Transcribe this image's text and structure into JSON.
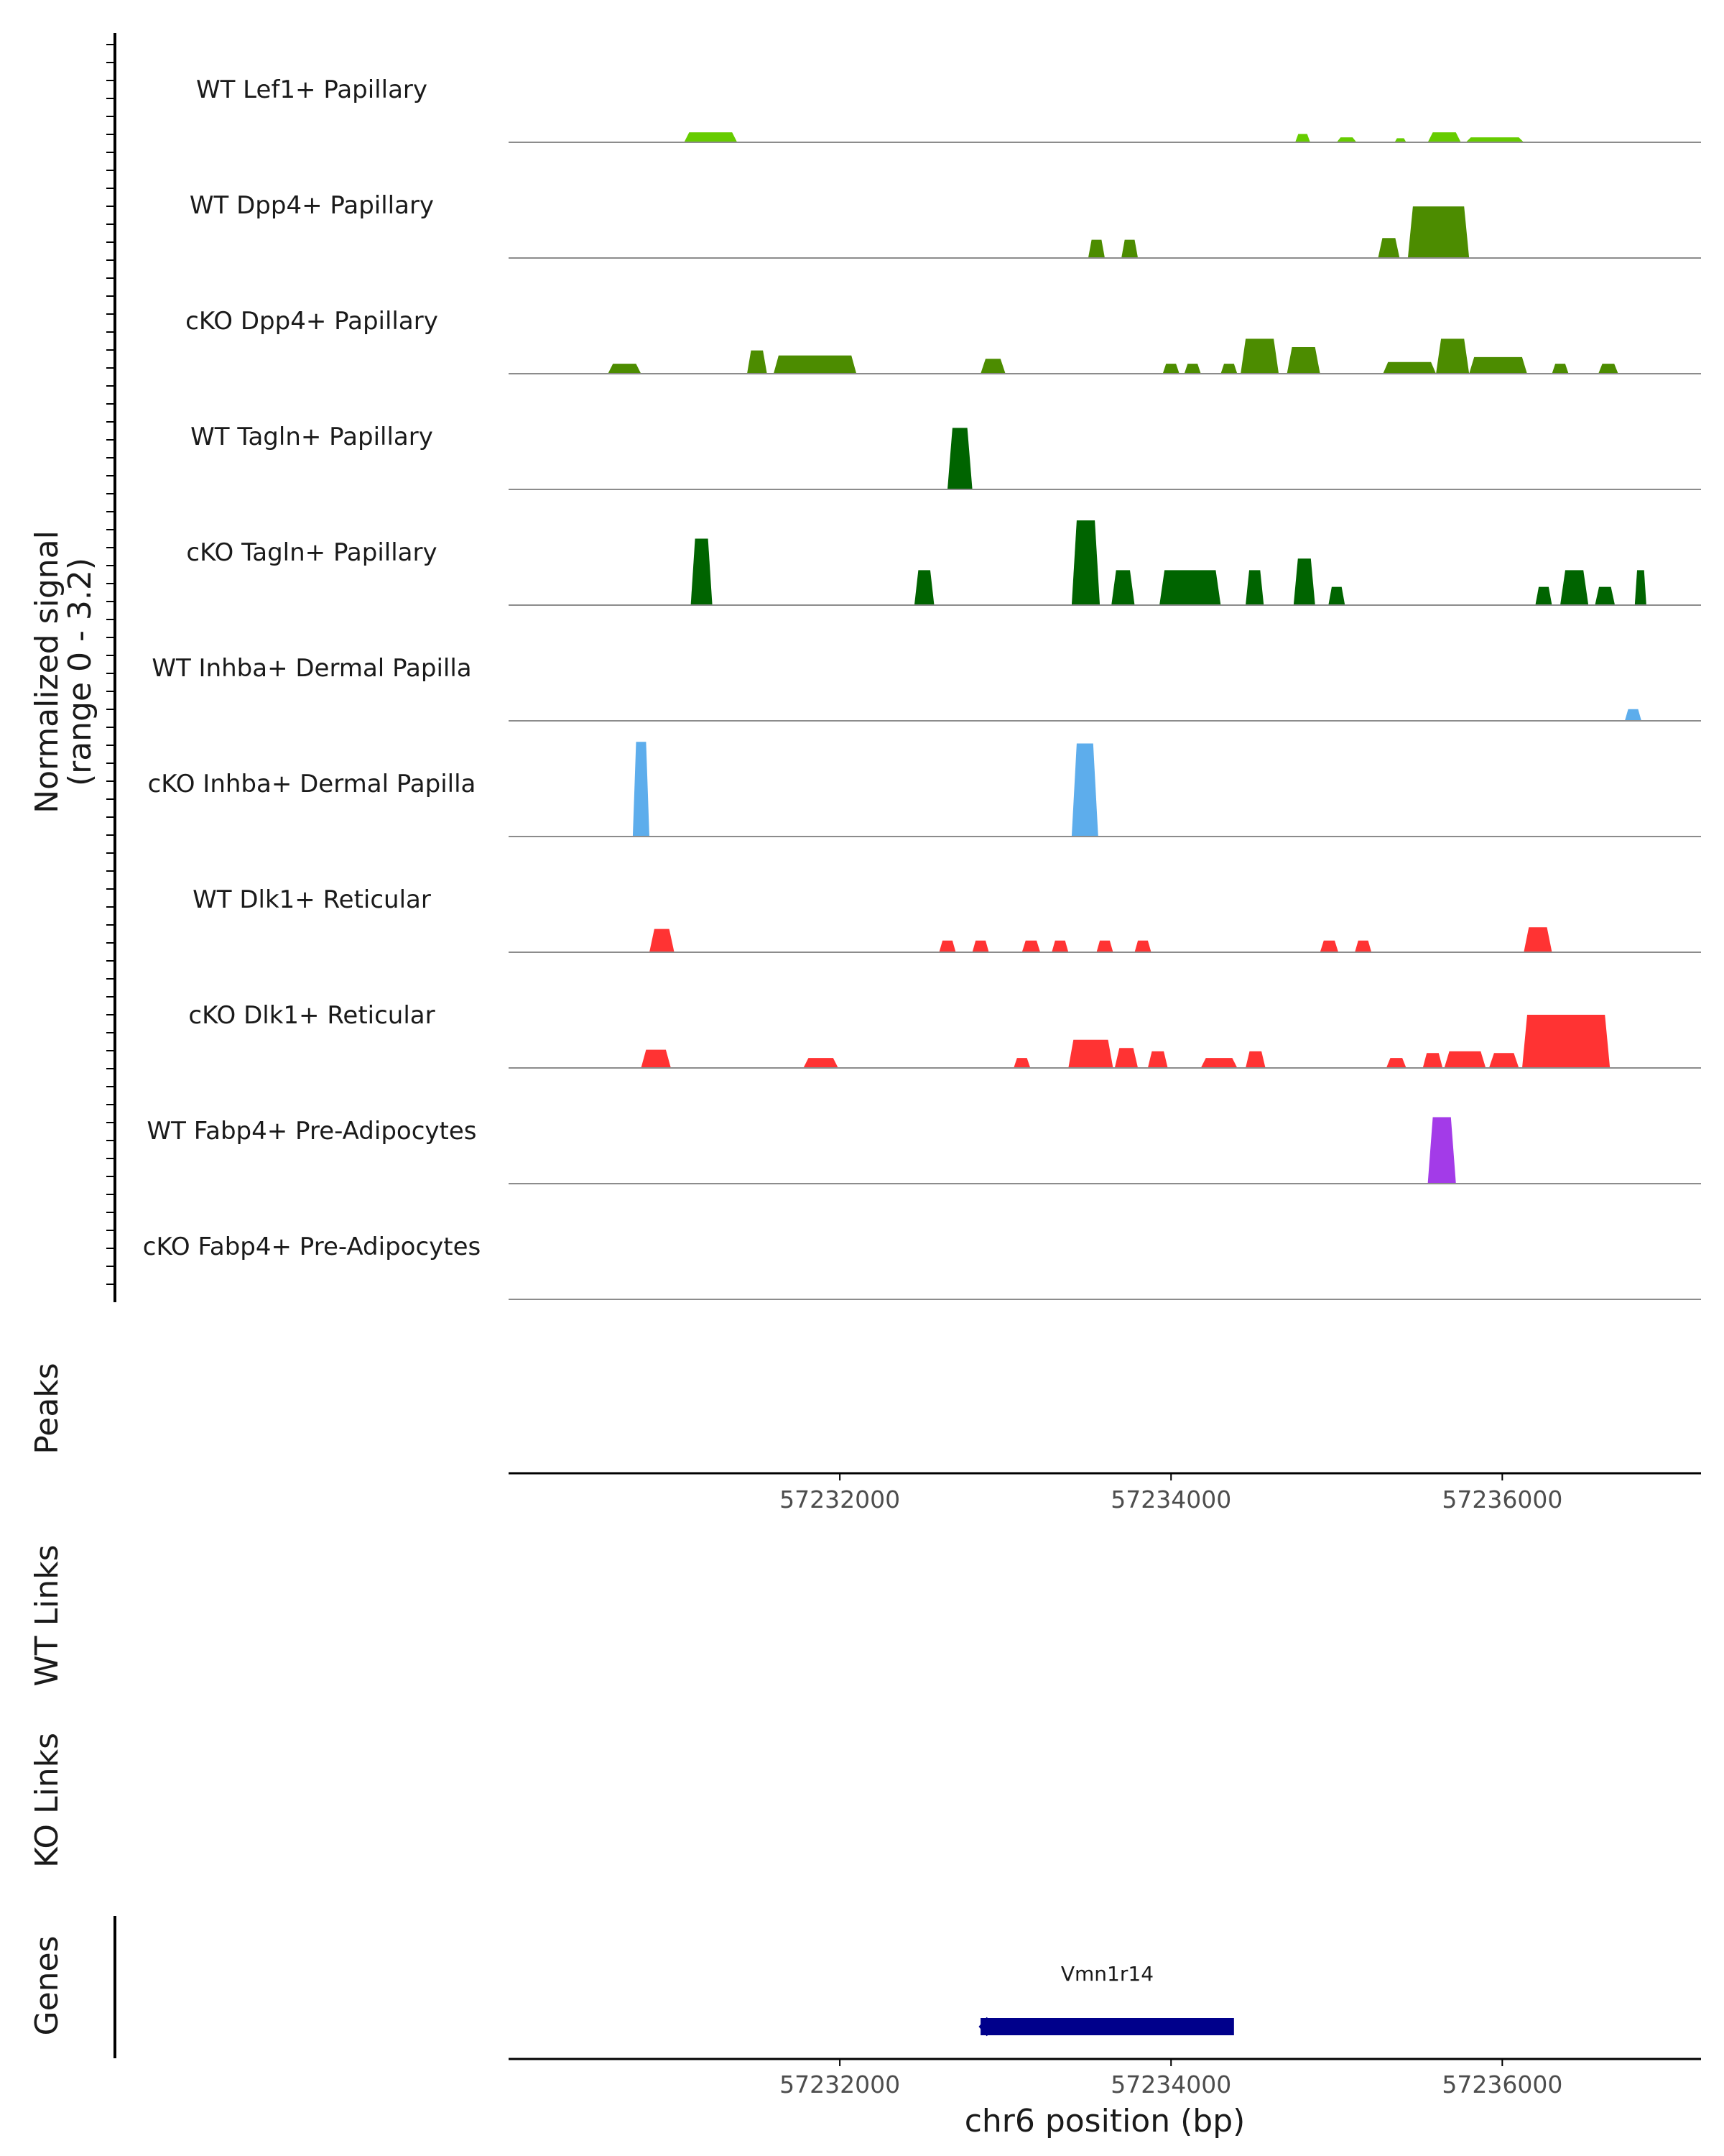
{
  "chart_data": {
    "type": "area",
    "title": "",
    "chromosome": "chr6",
    "x_range": [
      57230000,
      57237200
    ],
    "x_ticks": [
      57232000,
      57234000,
      57236000
    ],
    "x_tick_labels": [
      "57232000",
      "57234000",
      "57236000"
    ],
    "xlabel": "chr6 position (bp)",
    "ylabel_line1": "Normalized signal",
    "ylabel_line2": "(range 0 - 3.2)",
    "ylim": [
      0,
      3.2
    ],
    "panels": {
      "peaks": "Peaks",
      "wt_links": "WT Links",
      "ko_links": "KO Links",
      "genes": "Genes"
    },
    "tracks": [
      {
        "name": "WT Lef1+ Papillary",
        "color": "#66CC00",
        "peaks": [
          [
            57231060,
            57231380,
            0.3
          ],
          [
            57234750,
            57234840,
            0.25
          ],
          [
            57235000,
            57235120,
            0.15
          ],
          [
            57235350,
            57235420,
            0.12
          ],
          [
            57235550,
            57235750,
            0.3
          ],
          [
            57235780,
            57236130,
            0.15
          ]
        ]
      },
      {
        "name": "WT Dpp4+ Papillary",
        "color": "#4C8C00",
        "peaks": [
          [
            57233500,
            57233600,
            0.55
          ],
          [
            57233700,
            57233800,
            0.55
          ],
          [
            57235250,
            57235380,
            0.6
          ],
          [
            57235430,
            57235800,
            1.55
          ]
        ]
      },
      {
        "name": "cKO Dpp4+ Papillary",
        "color": "#4C8C00",
        "peaks": [
          [
            57230600,
            57230800,
            0.3
          ],
          [
            57231440,
            57231560,
            0.7
          ],
          [
            57231600,
            57232100,
            0.55
          ],
          [
            57232850,
            57233000,
            0.45
          ],
          [
            57233950,
            57234050,
            0.3
          ],
          [
            57234080,
            57234180,
            0.3
          ],
          [
            57234300,
            57234400,
            0.3
          ],
          [
            57234420,
            57234650,
            1.05
          ],
          [
            57234700,
            57234900,
            0.8
          ],
          [
            57235280,
            57235600,
            0.35
          ],
          [
            57235600,
            57235800,
            1.05
          ],
          [
            57235800,
            57236150,
            0.5
          ],
          [
            57236300,
            57236400,
            0.3
          ],
          [
            57236580,
            57236700,
            0.3
          ]
        ]
      },
      {
        "name": "WT Tagln+ Papillary",
        "color": "#006400",
        "peaks": [
          [
            57232650,
            57232800,
            1.85
          ]
        ]
      },
      {
        "name": "cKO Tagln+ Papillary",
        "color": "#006400",
        "peaks": [
          [
            57231100,
            57231230,
            2.0
          ],
          [
            57232450,
            57232570,
            1.05
          ],
          [
            57233400,
            57233570,
            2.55
          ],
          [
            57233640,
            57233780,
            1.05
          ],
          [
            57233930,
            57234300,
            1.05
          ],
          [
            57234450,
            57234560,
            1.05
          ],
          [
            57234740,
            57234870,
            1.4
          ],
          [
            57234950,
            57235050,
            0.55
          ],
          [
            57236200,
            57236300,
            0.55
          ],
          [
            57236350,
            57236520,
            1.05
          ],
          [
            57236560,
            57236680,
            0.55
          ],
          [
            57236800,
            57236870,
            1.05
          ]
        ]
      },
      {
        "name": "WT Inhba+ Dermal Papilla",
        "color": "#5DADEC",
        "peaks": [
          [
            57236740,
            57236840,
            0.35
          ]
        ]
      },
      {
        "name": "cKO Inhba+ Dermal Papilla",
        "color": "#5DADEC",
        "peaks": [
          [
            57230750,
            57230850,
            2.85
          ],
          [
            57233400,
            57233560,
            2.8
          ]
        ]
      },
      {
        "name": "WT Dlk1+ Reticular",
        "color": "#FF3333",
        "peaks": [
          [
            57230850,
            57231000,
            0.7
          ],
          [
            57232600,
            57232700,
            0.35
          ],
          [
            57232800,
            57232900,
            0.35
          ],
          [
            57233100,
            57233210,
            0.35
          ],
          [
            57233280,
            57233380,
            0.35
          ],
          [
            57233550,
            57233650,
            0.35
          ],
          [
            57233780,
            57233880,
            0.35
          ],
          [
            57234900,
            57235010,
            0.35
          ],
          [
            57235110,
            57235210,
            0.35
          ],
          [
            57236130,
            57236300,
            0.75
          ]
        ]
      },
      {
        "name": "cKO Dlk1+ Reticular",
        "color": "#FF3333",
        "peaks": [
          [
            57230800,
            57230980,
            0.55
          ],
          [
            57231780,
            57231990,
            0.3
          ],
          [
            57233050,
            57233150,
            0.3
          ],
          [
            57233380,
            57233650,
            0.85
          ],
          [
            57233660,
            57233800,
            0.6
          ],
          [
            57233860,
            57233980,
            0.5
          ],
          [
            57234180,
            57234400,
            0.3
          ],
          [
            57234450,
            57234570,
            0.5
          ],
          [
            57235300,
            57235420,
            0.3
          ],
          [
            57235520,
            57235640,
            0.45
          ],
          [
            57235650,
            57235900,
            0.5
          ],
          [
            57235920,
            57236100,
            0.45
          ],
          [
            57236120,
            57236650,
            1.6
          ]
        ]
      },
      {
        "name": "WT Fabp4+ Pre-Adipocytes",
        "color": "#A33BE8",
        "peaks": [
          [
            57235550,
            57235720,
            2.0
          ]
        ]
      },
      {
        "name": "cKO Fabp4+ Pre-Adipocytes",
        "color": "#A33BE8",
        "peaks": []
      }
    ],
    "genes": [
      {
        "name": "Vmn1r14",
        "start": 57232850,
        "end": 57234380,
        "strand": "-"
      }
    ]
  }
}
